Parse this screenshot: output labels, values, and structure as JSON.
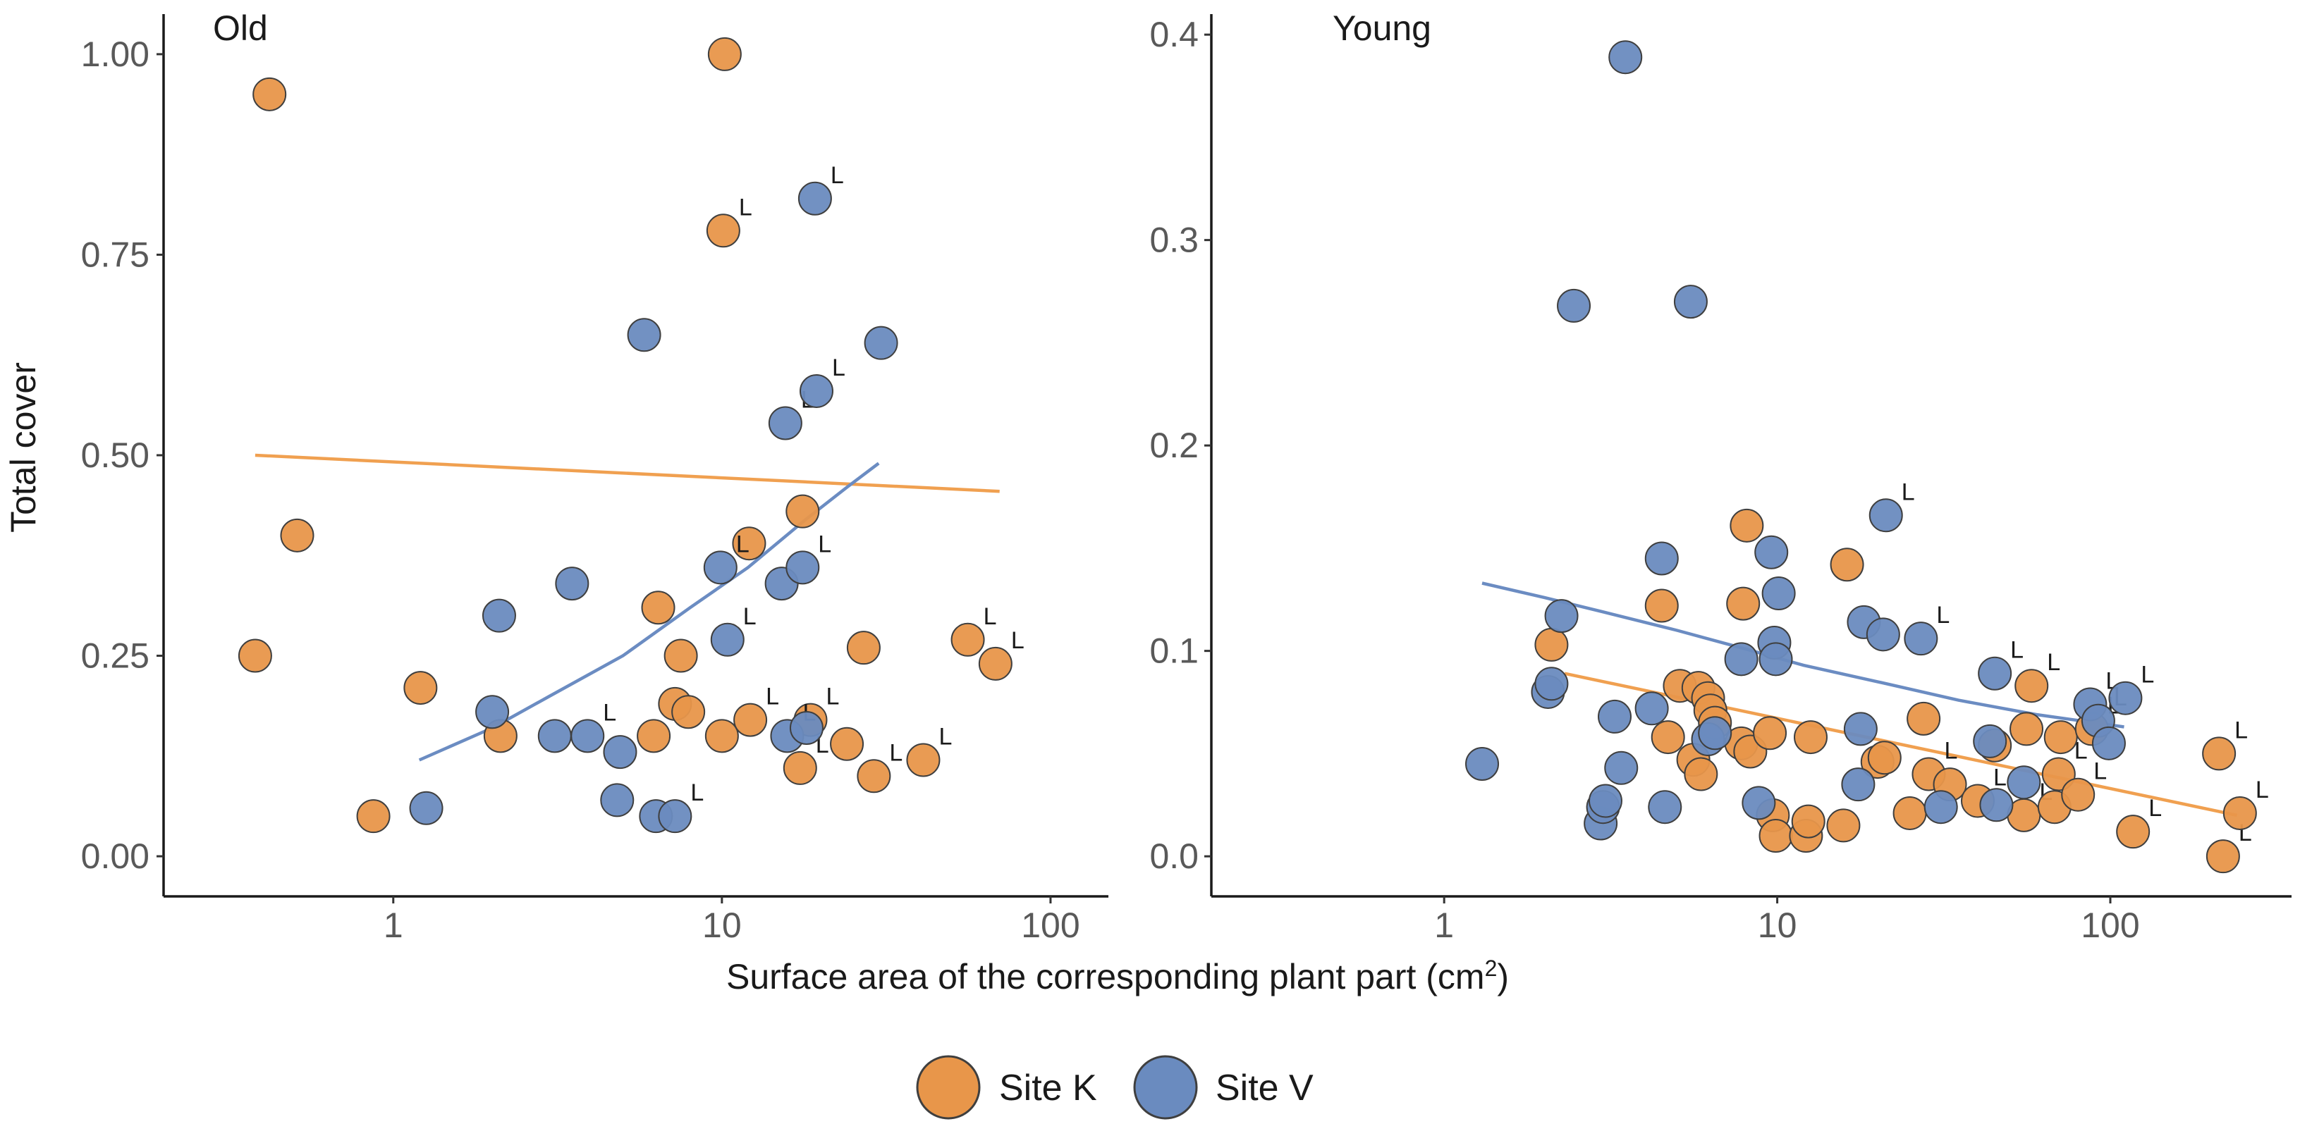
{
  "chart_data": {
    "type": "scatter",
    "y_axis_title": "Total cover",
    "x_axis_title": "Surface area of the corresponding plant part (cm",
    "x_axis_title_superscript": "2",
    "x_axis_title_suffix": ")",
    "x_scale": "log10",
    "legend": {
      "placement": "bottom-center",
      "items": [
        {
          "name": "Site K",
          "color": "#e8964a"
        },
        {
          "name": "Site V",
          "color": "#6a8bbf"
        }
      ]
    },
    "colors": {
      "site_k": "#e8964a",
      "site_k_fit": "#f0a050",
      "site_v": "#6a8bbf",
      "site_v_fit": "#6b8cc2",
      "axis": "#1a1a1a",
      "tick_label": "#595959",
      "point_stroke": "#3f3f3f"
    },
    "point_marker_label": "L",
    "panels": [
      {
        "id": "old",
        "title": "Old",
        "xlim": [
          0.2,
          150
        ],
        "ylim": [
          -0.05,
          1.05
        ],
        "x_ticks": [
          {
            "v": 1,
            "label": "1"
          },
          {
            "v": 10,
            "label": "10"
          },
          {
            "v": 100,
            "label": "100"
          }
        ],
        "y_ticks": [
          {
            "v": 0,
            "label": "0.00"
          },
          {
            "v": 0.25,
            "label": "0.25"
          },
          {
            "v": 0.5,
            "label": "0.50"
          },
          {
            "v": 0.75,
            "label": "0.75"
          },
          {
            "v": 1.0,
            "label": "1.00"
          }
        ],
        "series": [
          {
            "name": "Site K",
            "points": [
              {
                "x": 0.42,
                "y": 0.95
              },
              {
                "x": 0.38,
                "y": 0.25
              },
              {
                "x": 0.51,
                "y": 0.4
              },
              {
                "x": 0.87,
                "y": 0.05
              },
              {
                "x": 1.21,
                "y": 0.21
              },
              {
                "x": 2.12,
                "y": 0.15
              },
              {
                "x": 6.2,
                "y": 0.15
              },
              {
                "x": 6.4,
                "y": 0.31
              },
              {
                "x": 7.2,
                "y": 0.19
              },
              {
                "x": 7.5,
                "y": 0.25
              },
              {
                "x": 7.9,
                "y": 0.18
              },
              {
                "x": 10.0,
                "y": 0.15
              },
              {
                "x": 10.1,
                "y": 0.78,
                "L": true
              },
              {
                "x": 10.2,
                "y": 1.0
              },
              {
                "x": 12.1,
                "y": 0.39
              },
              {
                "x": 12.2,
                "y": 0.17,
                "L": true
              },
              {
                "x": 17.3,
                "y": 0.11,
                "L": true
              },
              {
                "x": 17.6,
                "y": 0.43
              },
              {
                "x": 18.6,
                "y": 0.17,
                "L": true
              },
              {
                "x": 24.0,
                "y": 0.14
              },
              {
                "x": 27.0,
                "y": 0.26
              },
              {
                "x": 29.0,
                "y": 0.1,
                "L": true
              },
              {
                "x": 41.0,
                "y": 0.12,
                "L": true
              },
              {
                "x": 56.0,
                "y": 0.27,
                "L": true
              },
              {
                "x": 68.0,
                "y": 0.24,
                "L": true
              }
            ],
            "fit": [
              {
                "x": 0.38,
                "y": 0.5
              },
              {
                "x": 70.0,
                "y": 0.455
              }
            ]
          },
          {
            "name": "Site V",
            "points": [
              {
                "x": 1.26,
                "y": 0.06
              },
              {
                "x": 2.0,
                "y": 0.18
              },
              {
                "x": 2.1,
                "y": 0.3
              },
              {
                "x": 3.1,
                "y": 0.15
              },
              {
                "x": 3.5,
                "y": 0.34
              },
              {
                "x": 3.9,
                "y": 0.15,
                "L": true
              },
              {
                "x": 4.8,
                "y": 0.07
              },
              {
                "x": 4.9,
                "y": 0.13
              },
              {
                "x": 5.8,
                "y": 0.65
              },
              {
                "x": 6.3,
                "y": 0.05
              },
              {
                "x": 7.2,
                "y": 0.05,
                "L": true
              },
              {
                "x": 9.9,
                "y": 0.36,
                "L": true
              },
              {
                "x": 10.4,
                "y": 0.27,
                "L": true
              },
              {
                "x": 15.2,
                "y": 0.34
              },
              {
                "x": 15.6,
                "y": 0.54,
                "L": true
              },
              {
                "x": 15.8,
                "y": 0.15,
                "L": true
              },
              {
                "x": 17.6,
                "y": 0.36,
                "L": true
              },
              {
                "x": 18.1,
                "y": 0.16
              },
              {
                "x": 19.2,
                "y": 0.82,
                "L": true
              },
              {
                "x": 19.4,
                "y": 0.58,
                "L": true
              },
              {
                "x": 30.5,
                "y": 0.64
              }
            ],
            "fit": [
              {
                "x": 1.2,
                "y": 0.12
              },
              {
                "x": 2,
                "y": 0.16
              },
              {
                "x": 3,
                "y": 0.2
              },
              {
                "x": 5,
                "y": 0.25
              },
              {
                "x": 8,
                "y": 0.31
              },
              {
                "x": 12,
                "y": 0.36
              },
              {
                "x": 18,
                "y": 0.42
              },
              {
                "x": 24,
                "y": 0.46
              },
              {
                "x": 30,
                "y": 0.49
              }
            ]
          }
        ]
      },
      {
        "id": "young",
        "title": "Young",
        "xlim": [
          0.2,
          350
        ],
        "ylim": [
          -0.0195,
          0.41
        ],
        "x_ticks": [
          {
            "v": 1,
            "label": "1"
          },
          {
            "v": 10,
            "label": "10"
          },
          {
            "v": 100,
            "label": "100"
          }
        ],
        "y_ticks": [
          {
            "v": 0,
            "label": "0.0"
          },
          {
            "v": 0.1,
            "label": "0.1"
          },
          {
            "v": 0.2,
            "label": "0.2"
          },
          {
            "v": 0.3,
            "label": "0.3"
          },
          {
            "v": 0.4,
            "label": "0.4"
          }
        ],
        "series": [
          {
            "name": "Site K",
            "points": [
              {
                "x": 2.1,
                "y": 0.103
              },
              {
                "x": 4.5,
                "y": 0.122
              },
              {
                "x": 4.7,
                "y": 0.058
              },
              {
                "x": 5.1,
                "y": 0.083
              },
              {
                "x": 5.6,
                "y": 0.047
              },
              {
                "x": 5.8,
                "y": 0.082
              },
              {
                "x": 5.9,
                "y": 0.04
              },
              {
                "x": 6.2,
                "y": 0.077
              },
              {
                "x": 6.3,
                "y": 0.071
              },
              {
                "x": 6.5,
                "y": 0.065
              },
              {
                "x": 7.8,
                "y": 0.055
              },
              {
                "x": 7.9,
                "y": 0.123
              },
              {
                "x": 8.1,
                "y": 0.161
              },
              {
                "x": 8.3,
                "y": 0.051
              },
              {
                "x": 9.5,
                "y": 0.06
              },
              {
                "x": 9.7,
                "y": 0.02
              },
              {
                "x": 9.9,
                "y": 0.01
              },
              {
                "x": 12.2,
                "y": 0.01
              },
              {
                "x": 12.4,
                "y": 0.017
              },
              {
                "x": 12.6,
                "y": 0.058
              },
              {
                "x": 15.8,
                "y": 0.015
              },
              {
                "x": 16.2,
                "y": 0.142
              },
              {
                "x": 20.0,
                "y": 0.046
              },
              {
                "x": 21.0,
                "y": 0.048
              },
              {
                "x": 25.0,
                "y": 0.021
              },
              {
                "x": 27.5,
                "y": 0.067
              },
              {
                "x": 28.5,
                "y": 0.04,
                "L": true
              },
              {
                "x": 33.0,
                "y": 0.035
              },
              {
                "x": 40.0,
                "y": 0.027,
                "L": true
              },
              {
                "x": 45.0,
                "y": 0.054
              },
              {
                "x": 55.0,
                "y": 0.02,
                "L": true
              },
              {
                "x": 56.0,
                "y": 0.062
              },
              {
                "x": 58.0,
                "y": 0.083,
                "L": true
              },
              {
                "x": 68.0,
                "y": 0.024
              },
              {
                "x": 70.0,
                "y": 0.04,
                "L": true
              },
              {
                "x": 71.0,
                "y": 0.058
              },
              {
                "x": 80.0,
                "y": 0.03,
                "L": true
              },
              {
                "x": 88.0,
                "y": 0.062,
                "L": true
              },
              {
                "x": 117.0,
                "y": 0.012,
                "L": true
              },
              {
                "x": 212.0,
                "y": 0.05,
                "L": true
              },
              {
                "x": 218.0,
                "y": 0.0,
                "L": true
              },
              {
                "x": 245.0,
                "y": 0.021,
                "L": true
              }
            ],
            "fit": [
              {
                "x": 2.3,
                "y": 0.089
              },
              {
                "x": 240,
                "y": 0.02
              }
            ]
          },
          {
            "name": "Site V",
            "points": [
              {
                "x": 1.3,
                "y": 0.045
              },
              {
                "x": 2.05,
                "y": 0.08
              },
              {
                "x": 2.1,
                "y": 0.084
              },
              {
                "x": 2.25,
                "y": 0.117
              },
              {
                "x": 2.45,
                "y": 0.268
              },
              {
                "x": 2.95,
                "y": 0.016
              },
              {
                "x": 3.0,
                "y": 0.024
              },
              {
                "x": 3.05,
                "y": 0.027
              },
              {
                "x": 3.25,
                "y": 0.068
              },
              {
                "x": 3.4,
                "y": 0.043
              },
              {
                "x": 3.5,
                "y": 0.389
              },
              {
                "x": 4.2,
                "y": 0.072
              },
              {
                "x": 4.5,
                "y": 0.145
              },
              {
                "x": 4.6,
                "y": 0.024
              },
              {
                "x": 5.5,
                "y": 0.27
              },
              {
                "x": 6.2,
                "y": 0.057
              },
              {
                "x": 6.5,
                "y": 0.06
              },
              {
                "x": 7.8,
                "y": 0.096
              },
              {
                "x": 8.8,
                "y": 0.026
              },
              {
                "x": 9.6,
                "y": 0.148
              },
              {
                "x": 9.8,
                "y": 0.104
              },
              {
                "x": 9.9,
                "y": 0.096
              },
              {
                "x": 10.1,
                "y": 0.128
              },
              {
                "x": 17.5,
                "y": 0.035
              },
              {
                "x": 17.8,
                "y": 0.062
              },
              {
                "x": 18.2,
                "y": 0.114
              },
              {
                "x": 20.8,
                "y": 0.108
              },
              {
                "x": 21.2,
                "y": 0.166,
                "L": true
              },
              {
                "x": 27.0,
                "y": 0.106,
                "L": true
              },
              {
                "x": 31.0,
                "y": 0.024
              },
              {
                "x": 43.5,
                "y": 0.056
              },
              {
                "x": 45.0,
                "y": 0.089,
                "L": true
              },
              {
                "x": 45.5,
                "y": 0.025
              },
              {
                "x": 55.0,
                "y": 0.036
              },
              {
                "x": 87.0,
                "y": 0.074,
                "L": true
              },
              {
                "x": 92.0,
                "y": 0.066,
                "L": true
              },
              {
                "x": 99.0,
                "y": 0.055
              },
              {
                "x": 111.0,
                "y": 0.077,
                "L": true
              }
            ],
            "fit": [
              {
                "x": 1.3,
                "y": 0.133
              },
              {
                "x": 2,
                "y": 0.126
              },
              {
                "x": 3,
                "y": 0.119
              },
              {
                "x": 5,
                "y": 0.11
              },
              {
                "x": 8,
                "y": 0.101
              },
              {
                "x": 12,
                "y": 0.093
              },
              {
                "x": 20,
                "y": 0.085
              },
              {
                "x": 35,
                "y": 0.076
              },
              {
                "x": 60,
                "y": 0.069
              },
              {
                "x": 90,
                "y": 0.065
              },
              {
                "x": 110,
                "y": 0.063
              }
            ]
          }
        ]
      }
    ]
  }
}
